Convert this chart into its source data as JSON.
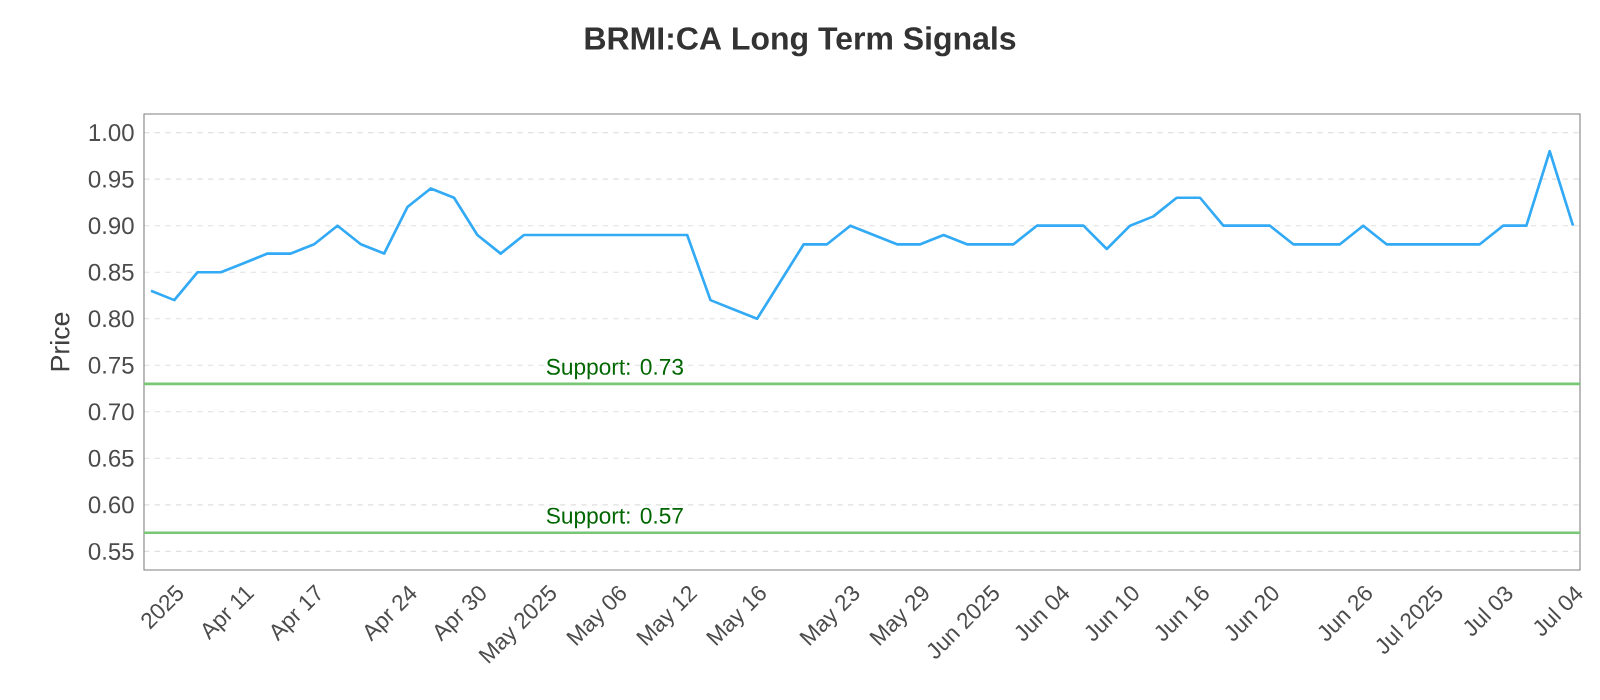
{
  "chart_data": {
    "type": "line",
    "title": "BRMI:CA Long Term Signals",
    "ylabel": "Price",
    "categories": [
      null,
      "2025",
      null,
      null,
      "Apr 11",
      null,
      null,
      "Apr 17",
      null,
      null,
      null,
      "Apr 24",
      null,
      null,
      "Apr 30",
      null,
      null,
      "May 2025",
      null,
      null,
      "May 06",
      null,
      null,
      "May 12",
      null,
      null,
      "May 16",
      null,
      null,
      null,
      "May 23",
      null,
      null,
      "May 29",
      null,
      null,
      "Jun 2025",
      null,
      null,
      "Jun 04",
      null,
      null,
      "Jun 10",
      null,
      null,
      "Jun 16",
      null,
      null,
      "Jun 20",
      null,
      null,
      null,
      "Jun 26",
      null,
      null,
      "Jul 2025",
      null,
      null,
      "Jul 03",
      null,
      null,
      "Jul 04"
    ],
    "series": [
      {
        "color": "#33aaf5",
        "values": [
          0.83,
          0.82,
          0.85,
          0.85,
          0.86,
          0.87,
          0.87,
          0.88,
          0.9,
          0.88,
          0.87,
          0.92,
          0.94,
          0.93,
          0.89,
          0.87,
          0.89,
          0.89,
          0.89,
          0.89,
          0.89,
          0.89,
          0.89,
          0.89,
          0.82,
          0.81,
          0.8,
          0.84,
          0.88,
          0.88,
          0.9,
          0.89,
          0.88,
          0.88,
          0.89,
          0.88,
          0.88,
          0.88,
          0.9,
          0.9,
          0.9,
          0.875,
          0.9,
          0.91,
          0.93,
          0.93,
          0.9,
          0.9,
          0.9,
          0.88,
          0.88,
          0.88,
          0.9,
          0.88,
          0.88,
          0.88,
          0.88,
          0.88,
          0.9,
          0.9,
          0.98,
          0.9
        ]
      }
    ],
    "ylim": [
      0.53,
      1.02
    ],
    "yticks": [
      0.55,
      {
        "value": 0.6,
        "label": "0.60"
      },
      0.65,
      {
        "value": 0.7,
        "label": "0.70"
      },
      0.75,
      {
        "value": 0.8,
        "label": "0.80"
      },
      0.85,
      {
        "value": 0.9,
        "label": "0.90"
      },
      0.95,
      {
        "value": 1.0,
        "label": "1.00"
      }
    ],
    "ref_lines": [
      {
        "axis": "y",
        "value": 0.73,
        "label": "Support: 0.73",
        "color": "#77c777"
      },
      {
        "axis": "y",
        "value": 0.57,
        "label": "Support: 0.57",
        "color": "#77c777"
      }
    ],
    "grid": "y",
    "marker": "none",
    "line_style": "solid"
  }
}
